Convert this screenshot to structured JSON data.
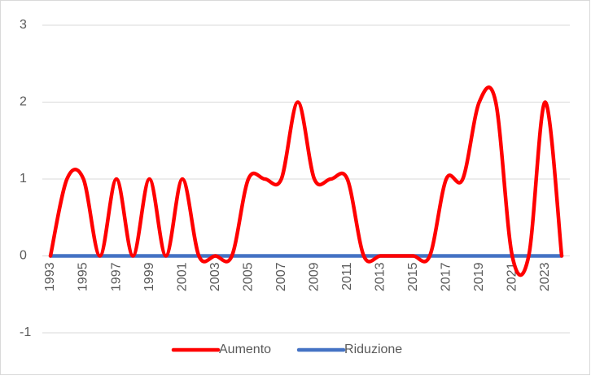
{
  "chart_data": {
    "type": "line",
    "categories": [
      "1993",
      null,
      "1995",
      null,
      "1997",
      null,
      "1999",
      null,
      "2001",
      null,
      "2003",
      null,
      "2005",
      null,
      "2007",
      null,
      "2009",
      null,
      "2011",
      null,
      "2013",
      null,
      "2015",
      null,
      "2017",
      null,
      "2019",
      null,
      "2021",
      null,
      "2023",
      null
    ],
    "series": [
      {
        "name": "Aumento",
        "color": "#ff0000",
        "values": [
          0,
          1,
          1,
          0,
          1,
          0,
          1,
          0,
          1,
          0,
          0,
          0,
          1,
          1,
          1,
          2,
          1,
          1,
          1,
          0,
          0,
          0,
          0,
          0,
          1,
          1,
          2,
          2,
          0,
          0,
          2,
          0
        ]
      },
      {
        "name": "Riduzione",
        "color": "#4472c4",
        "values": [
          0,
          0,
          0,
          0,
          0,
          0,
          0,
          0,
          0,
          0,
          0,
          0,
          0,
          0,
          0,
          0,
          0,
          0,
          0,
          0,
          0,
          0,
          0,
          0,
          0,
          0,
          0,
          0,
          0,
          0,
          0,
          0
        ]
      }
    ],
    "ylim": [
      -1,
      3
    ],
    "yticks": [
      -1,
      0,
      1,
      2,
      3
    ],
    "grid": true,
    "smooth": true,
    "legend": "bottom"
  }
}
